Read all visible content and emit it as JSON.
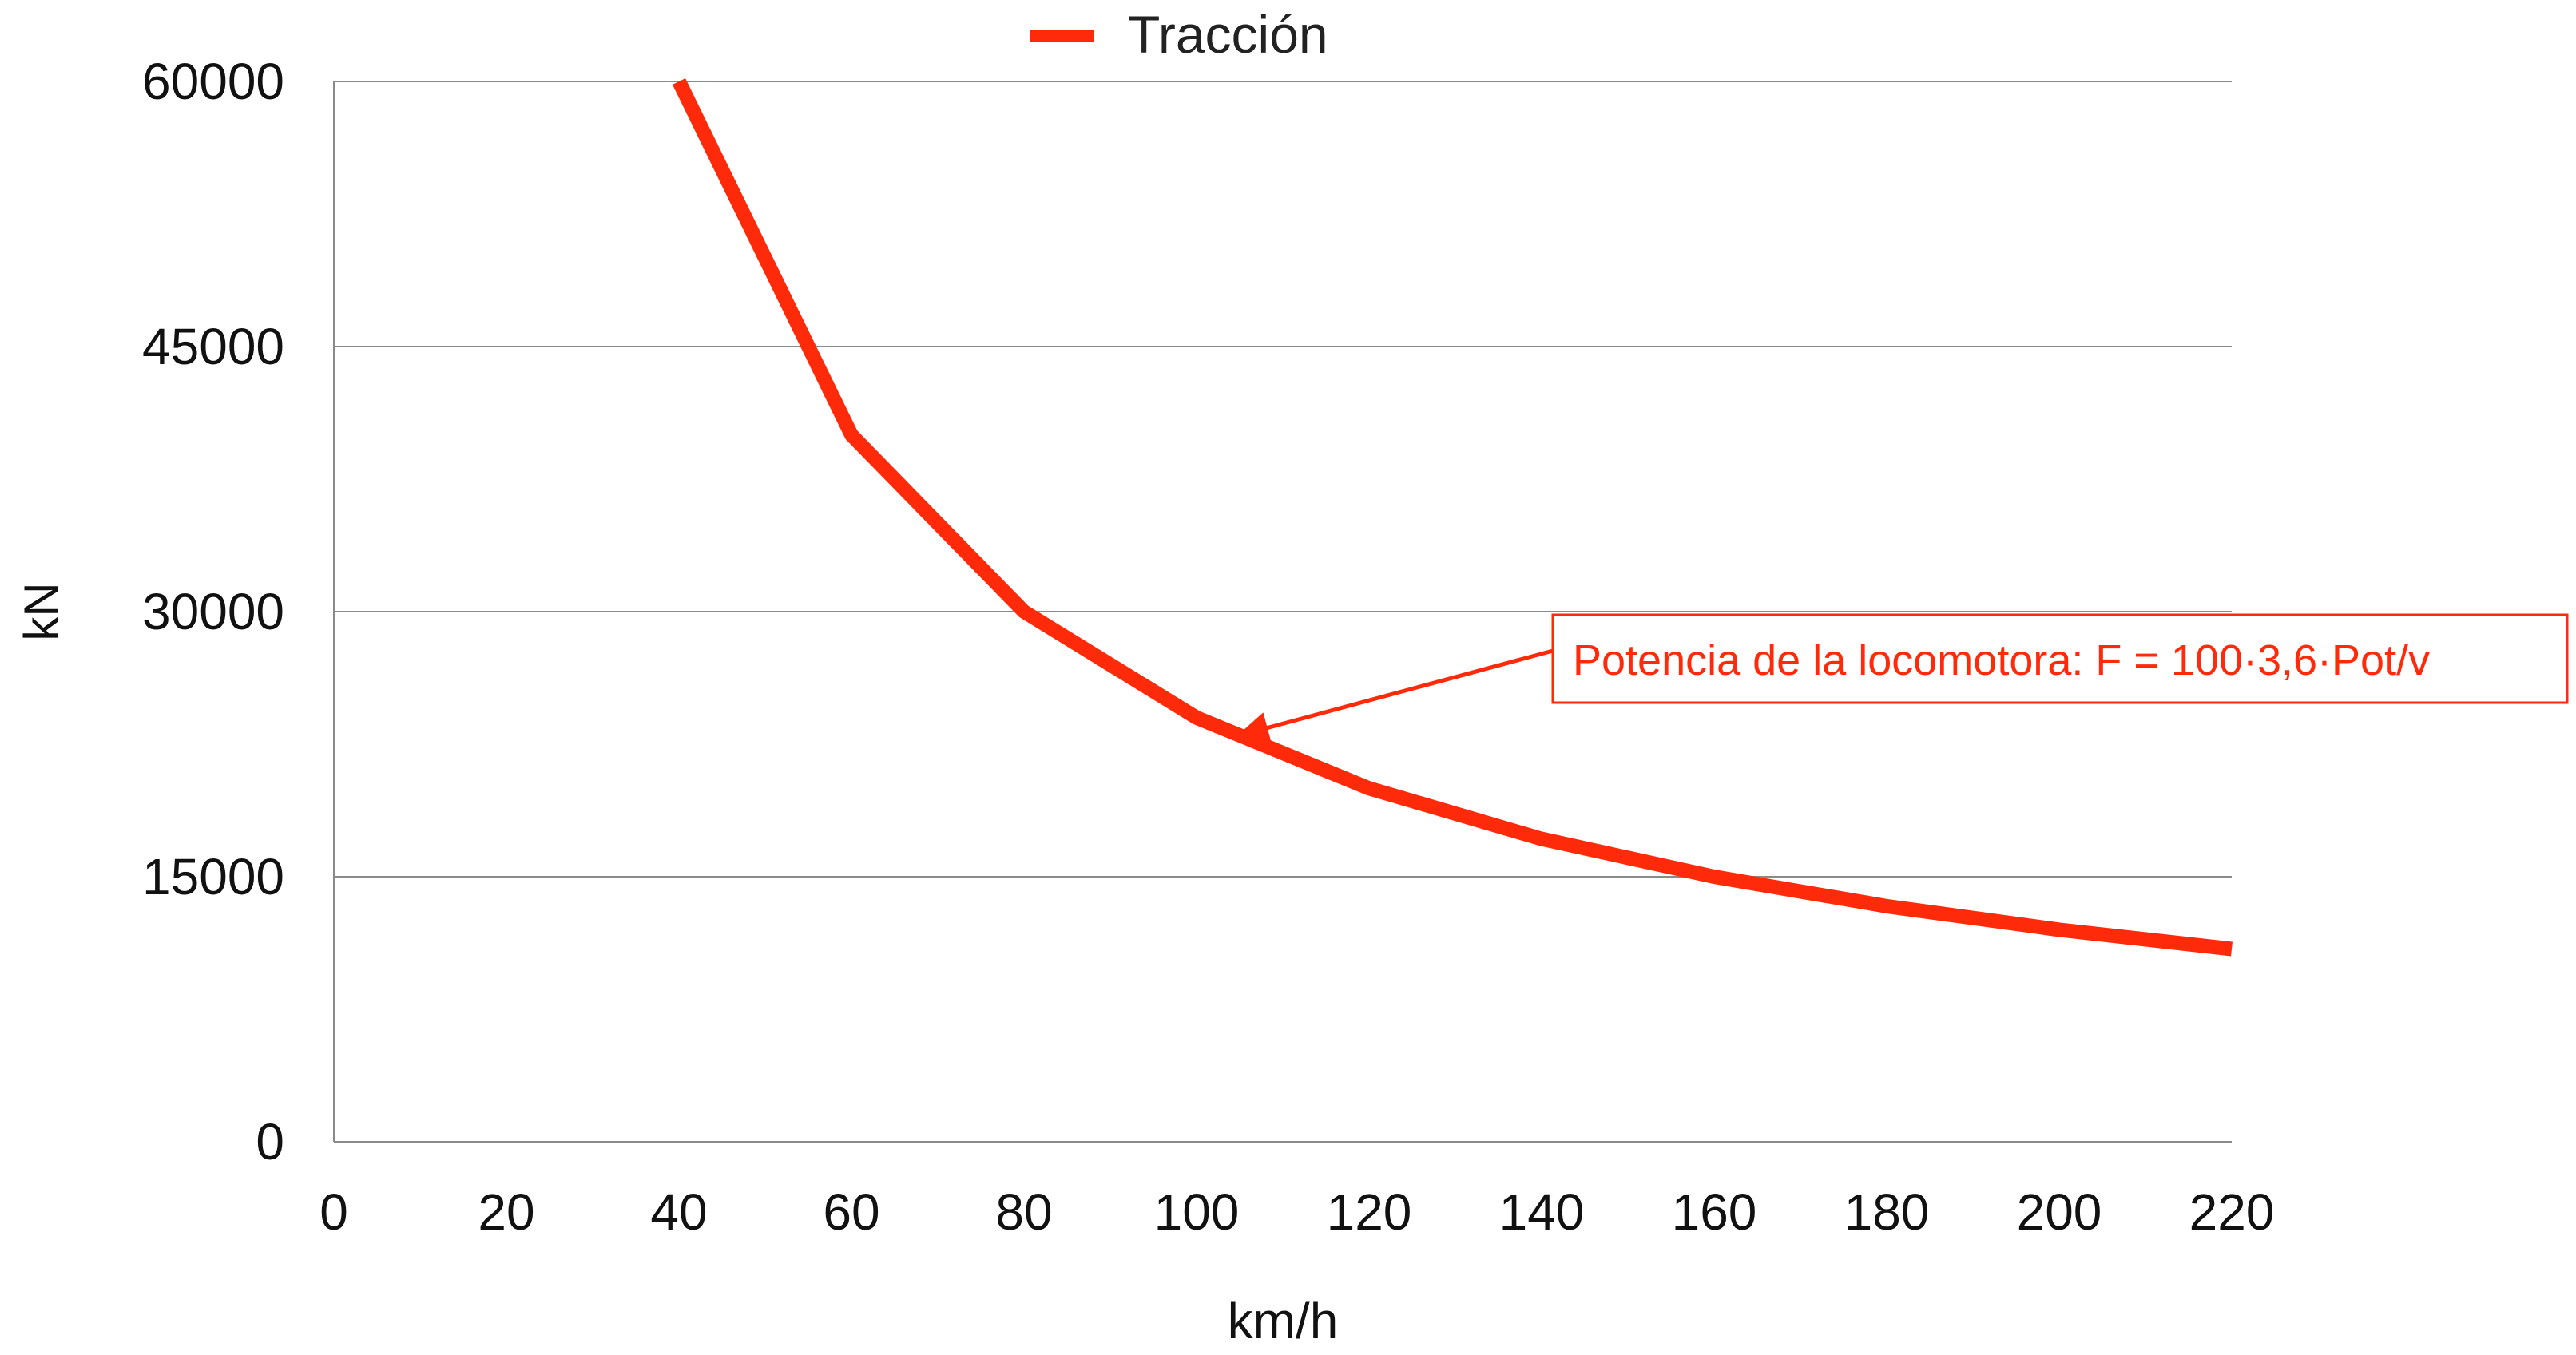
{
  "chart_data": {
    "type": "line",
    "title": "",
    "xlabel": "km/h",
    "ylabel": "kN",
    "x_ticks": [
      0,
      20,
      40,
      60,
      80,
      100,
      120,
      140,
      160,
      180,
      200,
      220
    ],
    "y_ticks": [
      0,
      15000,
      30000,
      45000,
      60000
    ],
    "xlim": [
      0,
      220
    ],
    "ylim": [
      0,
      60000
    ],
    "grid": "horizontal",
    "legend_position": "top",
    "series": [
      {
        "name": "Tracción",
        "color": "#ff2a0a",
        "x": [
          40,
          60,
          80,
          100,
          120,
          140,
          160,
          180,
          200,
          220
        ],
        "values": [
          60000,
          40000,
          30000,
          24000,
          20000,
          17143,
          15000,
          13333,
          12000,
          10909
        ]
      }
    ],
    "annotations": [
      {
        "text": "Potencia de la locomotora: F = 100·3,6·Pot/v",
        "color": "#ff2a0a",
        "arrow_target": {
          "x": 105,
          "y": 23000
        }
      }
    ]
  }
}
